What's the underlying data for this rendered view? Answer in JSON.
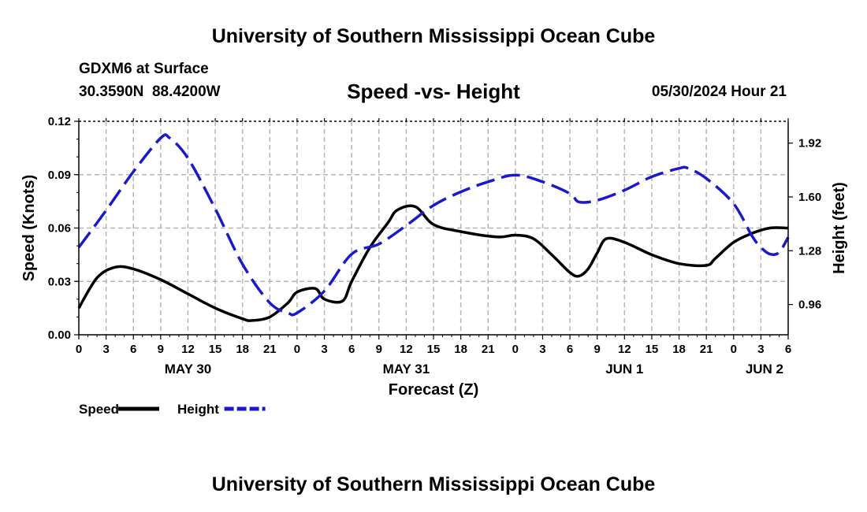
{
  "header": {
    "title": "University of Southern Mississippi Ocean Cube",
    "station": "GDXM6 at Surface",
    "location": "30.3590N  88.4200W",
    "datetime": "05/30/2024 Hour 21",
    "footer_title": "University of Southern Mississippi Ocean Cube"
  },
  "chart_data": {
    "type": "line",
    "title": "Speed -vs- Height",
    "xlabel": "Forecast (Z)",
    "ylabel": "Speed (Knots)",
    "y2label": "Height (feet)",
    "xlim": [
      0,
      78
    ],
    "ylim": [
      0,
      0.12
    ],
    "y2lim": [
      0.78,
      2.05
    ],
    "grid": true,
    "x_tick_labels": [
      "0",
      "3",
      "6",
      "9",
      "12",
      "15",
      "18",
      "21",
      "0",
      "3",
      "6",
      "9",
      "12",
      "15",
      "18",
      "21",
      "0",
      "3",
      "6",
      "9",
      "12",
      "15",
      "18",
      "21",
      "0",
      "3",
      "6"
    ],
    "y_ticks": [
      0,
      0.03,
      0.06,
      0.09,
      0.12
    ],
    "y_tick_labels": [
      "0.00",
      "0.03",
      "0.06",
      "0.09",
      "0.12"
    ],
    "y2_ticks": [
      0.96,
      1.28,
      1.6,
      1.92
    ],
    "y2_tick_labels": [
      "0.96",
      "1.28",
      "1.60",
      "1.92"
    ],
    "day_labels": [
      {
        "label": "MAY 30",
        "hour": 12
      },
      {
        "label": "MAY 31",
        "hour": 36
      },
      {
        "label": "JUN 1",
        "hour": 60
      },
      {
        "label": "JUN 2",
        "hour": 78
      }
    ],
    "legend": [
      {
        "name": "Speed",
        "color": "#000000",
        "dash": "solid"
      },
      {
        "name": "Height",
        "color": "#1a1acc",
        "dash": "dashed"
      }
    ],
    "series": [
      {
        "name": "Speed",
        "axis": "left",
        "color": "#000000",
        "x": [
          0,
          2,
          4,
          6,
          9,
          12,
          15,
          18,
          19,
          21,
          23,
          24,
          26,
          27,
          29,
          30,
          32,
          34,
          35,
          37,
          39,
          42,
          46,
          48,
          50,
          52,
          54,
          55,
          56,
          57,
          58,
          60,
          63,
          66,
          69,
          70,
          72,
          74,
          76,
          78
        ],
        "y": [
          0.015,
          0.032,
          0.038,
          0.037,
          0.031,
          0.023,
          0.015,
          0.009,
          0.008,
          0.01,
          0.018,
          0.024,
          0.026,
          0.02,
          0.019,
          0.03,
          0.049,
          0.063,
          0.07,
          0.072,
          0.062,
          0.058,
          0.055,
          0.056,
          0.054,
          0.045,
          0.035,
          0.033,
          0.037,
          0.046,
          0.054,
          0.052,
          0.045,
          0.04,
          0.039,
          0.043,
          0.052,
          0.057,
          0.06,
          0.06
        ]
      },
      {
        "name": "Height",
        "axis": "right",
        "color": "#1a1acc",
        "x": [
          0,
          3,
          6,
          9,
          10,
          12,
          15,
          18,
          21,
          23,
          24,
          27,
          30,
          33,
          36,
          39,
          42,
          45,
          48,
          51,
          54,
          55,
          57,
          60,
          63,
          66,
          67,
          69,
          72,
          74,
          75,
          76,
          77,
          78
        ],
        "y": [
          1.3,
          1.52,
          1.75,
          1.95,
          1.95,
          1.83,
          1.53,
          1.2,
          0.97,
          0.91,
          0.91,
          1.04,
          1.26,
          1.32,
          1.43,
          1.55,
          1.63,
          1.69,
          1.73,
          1.69,
          1.62,
          1.57,
          1.58,
          1.64,
          1.72,
          1.77,
          1.77,
          1.71,
          1.56,
          1.37,
          1.3,
          1.26,
          1.27,
          1.36
        ]
      }
    ]
  }
}
